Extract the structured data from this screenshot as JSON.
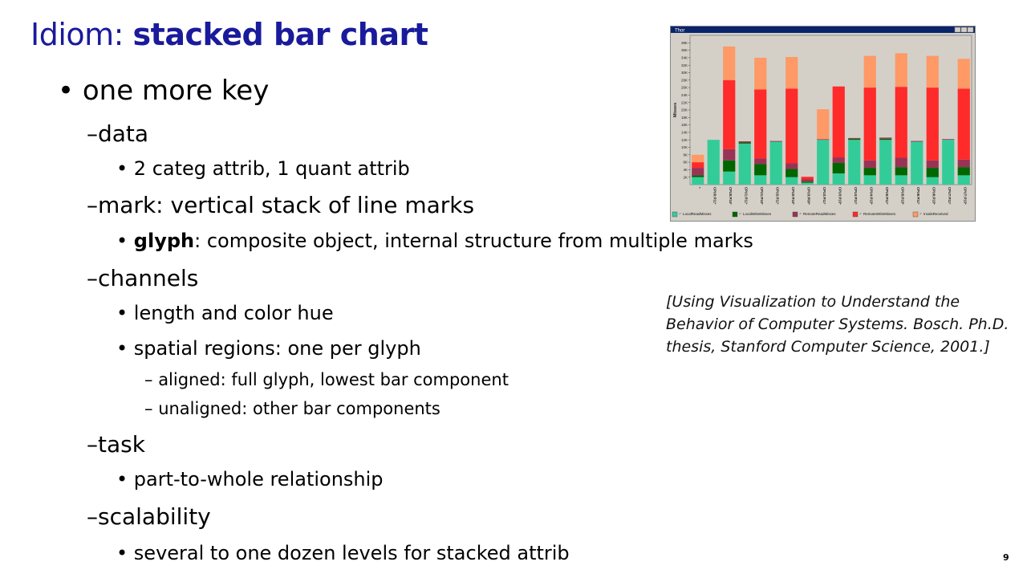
{
  "slide": {
    "title_prefix": "Idiom: ",
    "title_main": "stacked bar chart",
    "page_number": "9"
  },
  "bullets": [
    {
      "marker": "•",
      "text": "one more key"
    },
    {
      "marker": "–",
      "text": "data"
    },
    {
      "marker": "•",
      "text": "2 categ attrib, 1 quant attrib"
    },
    {
      "marker": "–",
      "text": "mark: vertical stack of line marks"
    },
    {
      "marker": "•",
      "bold": "glyph",
      "text": ": composite object, internal structure from multiple marks"
    },
    {
      "marker": "–",
      "text": "channels"
    },
    {
      "marker": "•",
      "text": "length and color hue"
    },
    {
      "marker": "•",
      "text": "spatial regions: one per glyph"
    },
    {
      "marker": "–",
      "text": "aligned: full glyph, lowest bar component"
    },
    {
      "marker": "–",
      "text": "unaligned: other bar components"
    },
    {
      "marker": "–",
      "text": "task"
    },
    {
      "marker": "•",
      "text": "part-to-whole relationship"
    },
    {
      "marker": "–",
      "text": "scalability"
    },
    {
      "marker": "•",
      "text": "several to one dozen levels for stacked attrib"
    }
  ],
  "citation": {
    "line1": "[Using Visualization to Understand the",
    "line2": "Behavior of Computer Systems. Bosch. Ph.D.",
    "line3": "thesis, Stanford Computer Science, 2001.]"
  },
  "chart_data": {
    "type": "bar",
    "stacked": true,
    "window_title": "Thor",
    "ylabel": "Misses",
    "ylim": [
      0,
      40000
    ],
    "yticks": [
      "2K",
      "4K",
      "6K",
      "8K",
      "10K",
      "12K",
      "14K",
      "16K",
      "18K",
      "20K",
      "22K",
      "24K",
      "26K",
      "28K",
      "30K",
      "32K",
      "34K",
      "36K",
      "38K"
    ],
    "categories": [
      "*",
      "CPU0:P11*",
      "CPU0:P15*",
      "CPU1:P11*",
      "CPU1:P15*",
      "CPU2:P11*",
      "CPU2:P15*",
      "CPU3:P00*",
      "CPU3:P11*",
      "CPU3:P15*",
      "CPU4:P11*",
      "CPU4:P15*",
      "CPU5:P11*",
      "CPU5:P15*",
      "CPU6:P11*",
      "CPU6:P15*",
      "CPU7:P11*",
      "CPU7:P15*"
    ],
    "series": [
      {
        "name": "LocalReadMisses",
        "color": "#33cc99",
        "values": [
          2000,
          12000,
          3500,
          11000,
          2500,
          11500,
          2000,
          500,
          12000,
          3000,
          12000,
          2500,
          12000,
          2500,
          11500,
          2000,
          12000,
          2500
        ]
      },
      {
        "name": "LocalWriteMisses",
        "color": "#006600",
        "values": [
          500,
          0,
          3000,
          300,
          3000,
          0,
          2200,
          300,
          0,
          2800,
          300,
          2000,
          300,
          2200,
          0,
          2500,
          0,
          2200
        ]
      },
      {
        "name": "RemoteReadMisses",
        "color": "#993355",
        "values": [
          2000,
          0,
          3000,
          300,
          1500,
          200,
          1500,
          600,
          200,
          1500,
          200,
          2000,
          300,
          2500,
          200,
          2000,
          200,
          2000
        ]
      },
      {
        "name": "RemoteWriteMisses",
        "color": "#ff2a2a",
        "values": [
          1500,
          0,
          18500,
          0,
          18500,
          0,
          20000,
          700,
          0,
          19000,
          0,
          19500,
          0,
          19000,
          0,
          19500,
          0,
          19000
        ]
      },
      {
        "name": "InvalsReceived",
        "color": "#ff9966",
        "values": [
          2000,
          0,
          9000,
          0,
          8500,
          0,
          8500,
          0,
          8000,
          0,
          0,
          8500,
          0,
          9000,
          0,
          8500,
          0,
          8000
        ]
      }
    ],
    "legend_position": "bottom"
  }
}
